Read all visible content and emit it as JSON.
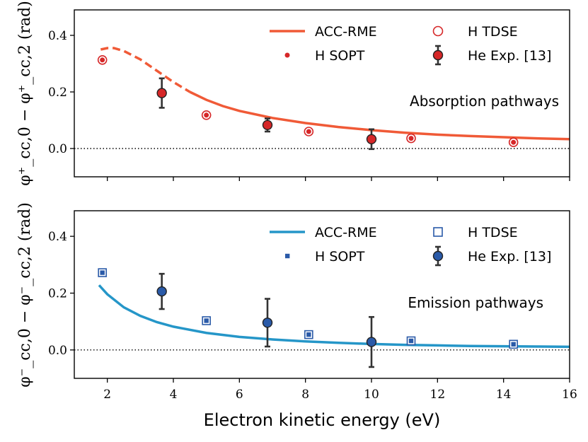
{
  "chart_data": [
    {
      "type": "line",
      "panel": "top",
      "annotation": "Absorption pathways",
      "ylabel": "φ⁺_cc,0 − φ⁺_cc,2 (rad)",
      "xlabel": "",
      "xlim": [
        1,
        16
      ],
      "ylim": [
        -0.1,
        0.49
      ],
      "yticks": [
        0.0,
        0.2,
        0.4
      ],
      "ytick_labels": [
        "0.0",
        "0.2",
        "0.4"
      ],
      "xticks": [
        2,
        4,
        6,
        8,
        10,
        12,
        14,
        16
      ],
      "xtick_labels": [
        "",
        "",
        "",
        "",
        "",
        "",
        "",
        ""
      ],
      "zero_line": true,
      "colors": {
        "line": "#f05a37",
        "marker": "#d62728",
        "error": "#333333"
      },
      "legend": {
        "line": "ACC-RME",
        "sopt": "H SOPT",
        "tdse": "H TDSE",
        "exp": "He Exp. [13]"
      },
      "series": [
        {
          "name": "ACC-RME",
          "kind": "line",
          "dashed_until_x": 4.6,
          "x": [
            1.8,
            2.0,
            2.2,
            2.5,
            3.0,
            3.5,
            4.0,
            4.5,
            5.0,
            5.5,
            6.0,
            7.0,
            8.0,
            9.0,
            10.0,
            11.0,
            12.0,
            13.0,
            14.0,
            15.0,
            16.0
          ],
          "y": [
            0.35,
            0.355,
            0.355,
            0.345,
            0.315,
            0.275,
            0.235,
            0.2,
            0.172,
            0.15,
            0.133,
            0.108,
            0.09,
            0.076,
            0.065,
            0.056,
            0.049,
            0.044,
            0.04,
            0.036,
            0.033
          ]
        },
        {
          "name": "H TDSE",
          "kind": "scatter-open",
          "x": [
            1.85,
            5.0,
            8.1,
            11.2,
            14.3
          ],
          "y": [
            0.313,
            0.118,
            0.06,
            0.036,
            0.022
          ]
        },
        {
          "name": "H SOPT",
          "kind": "scatter-small",
          "x": [
            1.85,
            5.0,
            8.1,
            11.2,
            14.3
          ],
          "y": [
            0.313,
            0.118,
            0.06,
            0.036,
            0.022
          ]
        },
        {
          "name": "He Exp. [13]",
          "kind": "errorbar",
          "x": [
            3.65,
            6.85,
            10.0
          ],
          "y": [
            0.196,
            0.083,
            0.033
          ],
          "err": [
            0.052,
            0.023,
            0.035
          ]
        }
      ]
    },
    {
      "type": "line",
      "panel": "bottom",
      "annotation": "Emission pathways",
      "ylabel": "φ⁻_cc,0 − φ⁻_cc,2 (rad)",
      "xlabel": "Electron kinetic energy (eV)",
      "xlim": [
        1,
        16
      ],
      "ylim": [
        -0.1,
        0.49
      ],
      "yticks": [
        0.0,
        0.2,
        0.4
      ],
      "ytick_labels": [
        "0.0",
        "0.2",
        "0.4"
      ],
      "xticks": [
        2,
        4,
        6,
        8,
        10,
        12,
        14,
        16
      ],
      "xtick_labels": [
        "2",
        "4",
        "6",
        "8",
        "10",
        "12",
        "14",
        "16"
      ],
      "zero_line": true,
      "colors": {
        "line": "#2596c8",
        "marker": "#2a5aa8",
        "error": "#333333"
      },
      "legend": {
        "line": "ACC-RME",
        "sopt": "H SOPT",
        "tdse": "H TDSE",
        "exp": "He Exp. [13]"
      },
      "series": [
        {
          "name": "ACC-RME",
          "kind": "line",
          "dashed_until_x": null,
          "x": [
            1.75,
            2.0,
            2.5,
            3.0,
            3.5,
            4.0,
            5.0,
            6.0,
            7.0,
            8.0,
            9.0,
            10.0,
            11.0,
            12.0,
            13.0,
            14.0,
            15.0,
            16.0
          ],
          "y": [
            0.228,
            0.196,
            0.15,
            0.12,
            0.098,
            0.082,
            0.06,
            0.046,
            0.037,
            0.03,
            0.025,
            0.021,
            0.018,
            0.016,
            0.014,
            0.013,
            0.012,
            0.011
          ]
        },
        {
          "name": "H TDSE",
          "kind": "square-open",
          "x": [
            1.85,
            5.0,
            8.1,
            11.2,
            14.3
          ],
          "y": [
            0.272,
            0.103,
            0.054,
            0.032,
            0.02
          ]
        },
        {
          "name": "H SOPT",
          "kind": "square-small",
          "x": [
            1.85,
            5.0,
            8.1,
            11.2,
            14.3
          ],
          "y": [
            0.272,
            0.103,
            0.054,
            0.032,
            0.02
          ]
        },
        {
          "name": "He Exp. [13]",
          "kind": "errorbar",
          "x": [
            3.65,
            6.85,
            10.0
          ],
          "y": [
            0.206,
            0.096,
            0.028
          ],
          "err": [
            0.062,
            0.084,
            0.088
          ]
        }
      ]
    }
  ]
}
